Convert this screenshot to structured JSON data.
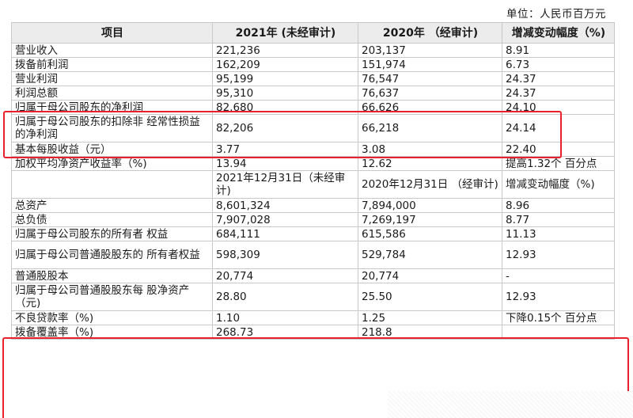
{
  "unit_label": "单位：人民币百万元",
  "table": {
    "headers": [
      "项目",
      "2021年 (未经审计)",
      "2020年 （经审计)",
      "增减变动幅度（%)"
    ],
    "rows_top": [
      [
        "营业收入",
        "221,236",
        "203,137",
        "8.91"
      ],
      [
        "拨备前利润",
        "162,209",
        "151,974",
        "6.73"
      ],
      [
        "营业利润",
        "95,199",
        "76,547",
        "24.37"
      ],
      [
        "利润总额",
        "95,310",
        "76,637",
        "24.37"
      ],
      [
        "归属于母公司股东的净利润",
        "82,680",
        "66,626",
        "24.10"
      ],
      [
        "归属于母公司股东的扣除非 经常性损益的净利润",
        "82,206",
        "66,218",
        "24.14"
      ],
      [
        "基本每股收益（元）",
        "3.77",
        "3.08",
        "22.40"
      ],
      [
        "加权平均净资产收益率（%)",
        "13.94",
        "12.62",
        "提高1.32个 百分点"
      ]
    ],
    "subheader": [
      "",
      "2021年12月31日（未经审计)",
      "2020年12月31日 （经审计)",
      "增减变动幅度（%)"
    ],
    "rows_bottom": [
      [
        "总资产",
        "8,601,324",
        "7,894,000",
        "8.96"
      ],
      [
        "总负债",
        "7,907,028",
        "7,269,197",
        "8.77"
      ],
      [
        "归属于母公司股东的所有者 权益",
        "684,111",
        "615,586",
        "11.13"
      ],
      [
        "归属于母公司普通股股东的 所有者权益",
        "598,309",
        "529,784",
        "12.93"
      ],
      [
        "普通股股本",
        "20,774",
        "20,774",
        "-"
      ],
      [
        "归属于母公司普通股股东每 股净资产（元)",
        "28.80",
        "25.50",
        "12.93"
      ],
      [
        "不良贷款率（%)",
        "1.10",
        "1.25",
        "下降0.15个 百分点"
      ],
      [
        "拨备覆盖率（%)",
        "268.73",
        "218.8",
        ""
      ]
    ]
  }
}
